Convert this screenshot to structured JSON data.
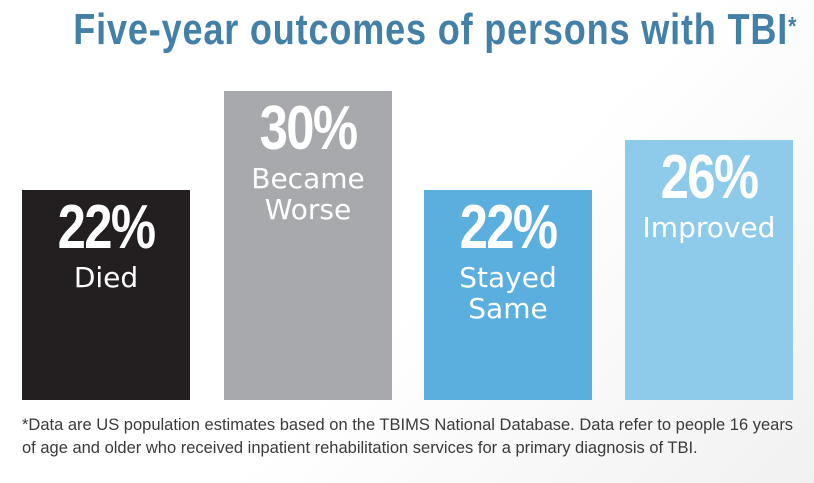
{
  "chart_data": {
    "type": "bar",
    "title": "Five-year outcomes of persons with TBI",
    "title_mark": "*",
    "categories": [
      "Died",
      "Became\nWorse",
      "Stayed\nSame",
      "Improved"
    ],
    "values": [
      22,
      30,
      22,
      26
    ],
    "value_labels": [
      "22%",
      "30%",
      "22%",
      "26%"
    ],
    "colors": [
      "#231f20",
      "#a7a9ac",
      "#5aafdf",
      "#8ecaea"
    ],
    "ylim": [
      5,
      30
    ],
    "grid": false,
    "legend": "none"
  },
  "footnote": "*Data are US population estimates based on the TBIMS National Database. Data refer to people 16 years of age and older who received inpatient rehabilitation services for a primary diagnosis of TBI."
}
